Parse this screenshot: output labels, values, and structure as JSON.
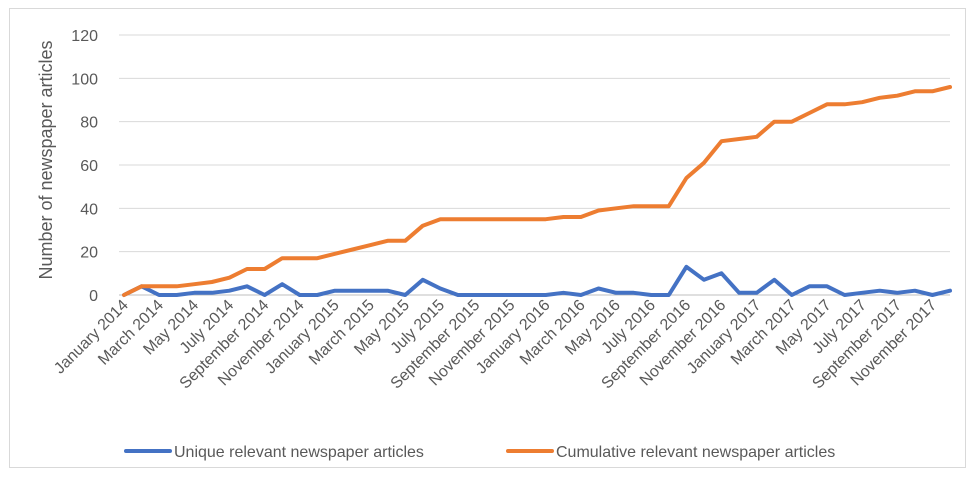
{
  "chart_data": {
    "type": "line",
    "title": "",
    "xlabel": "",
    "ylabel": "Number of newspaper articles",
    "ylim": [
      0,
      120
    ],
    "yticks": [
      0,
      20,
      40,
      60,
      80,
      100,
      120
    ],
    "grid": true,
    "legend_position": "bottom",
    "x": [
      "January 2014",
      "February 2014",
      "March 2014",
      "April 2014",
      "May 2014",
      "June 2014",
      "July 2014",
      "August 2014",
      "September 2014",
      "October 2014",
      "November 2014",
      "December 2014",
      "January 2015",
      "February 2015",
      "March 2015",
      "April 2015",
      "May 2015",
      "June 2015",
      "July 2015",
      "August 2015",
      "September 2015",
      "October 2015",
      "November 2015",
      "December 2015",
      "January 2016",
      "February 2016",
      "March 2016",
      "April 2016",
      "May 2016",
      "June 2016",
      "July 2016",
      "August 2016",
      "September 2016",
      "October 2016",
      "November 2016",
      "December 2016",
      "January 2017",
      "February 2017",
      "March 2017",
      "April 2017",
      "May 2017",
      "June 2017",
      "July 2017",
      "August 2017",
      "September 2017",
      "October 2017",
      "November 2017",
      "December 2017"
    ],
    "tick_labels": [
      "January 2014",
      "March 2014",
      "May 2014",
      "July 2014",
      "September 2014",
      "November 2014",
      "January 2015",
      "March 2015",
      "May 2015",
      "July 2015",
      "September 2015",
      "November 2015",
      "January 2016",
      "March 2016",
      "May 2016",
      "July 2016",
      "September 2016",
      "November 2016",
      "January 2017",
      "March 2017",
      "May 2017",
      "July 2017",
      "September 2017",
      "November 2017"
    ],
    "series": [
      {
        "name": "Unique relevant newspaper articles",
        "color": "#4472C4",
        "values": [
          0,
          4,
          0,
          0,
          1,
          1,
          2,
          4,
          0,
          5,
          0,
          0,
          2,
          2,
          2,
          2,
          0,
          7,
          3,
          0,
          0,
          0,
          0,
          0,
          0,
          1,
          0,
          3,
          1,
          1,
          0,
          0,
          13,
          7,
          10,
          1,
          1,
          7,
          0,
          4,
          4,
          0,
          1,
          2,
          1,
          2,
          0,
          2
        ]
      },
      {
        "name": "Cumulative relevant newspaper articles",
        "color": "#ED7D31",
        "values": [
          0,
          4,
          4,
          4,
          5,
          6,
          8,
          12,
          12,
          17,
          17,
          17,
          19,
          21,
          23,
          25,
          25,
          32,
          35,
          35,
          35,
          35,
          35,
          35,
          35,
          36,
          36,
          39,
          40,
          41,
          41,
          41,
          54,
          61,
          71,
          72,
          73,
          80,
          80,
          84,
          88,
          88,
          89,
          91,
          92,
          94,
          94,
          96
        ]
      }
    ]
  }
}
